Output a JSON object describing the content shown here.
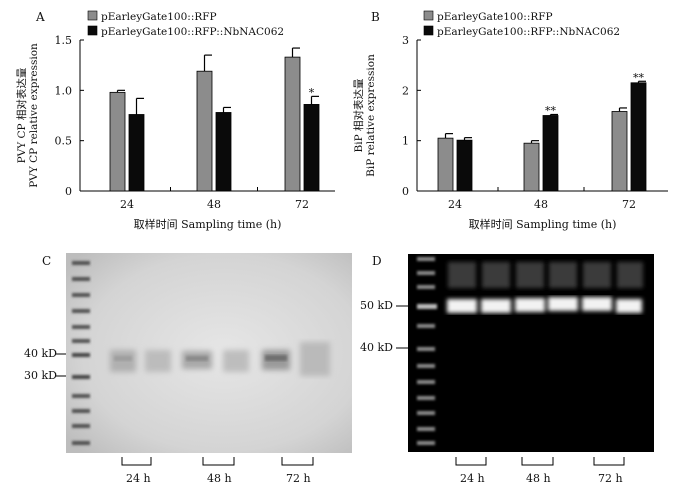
{
  "panels": {
    "a": "A",
    "b": "B",
    "c": "C",
    "d": "D"
  },
  "colors": {
    "series1": "#8c8c8c",
    "series2": "#0a0a0a",
    "gel_c_bg": "#d9d9d9",
    "gel_d_bg": "#000000"
  },
  "chart_data": [
    {
      "type": "bar",
      "categories": [
        "24",
        "48",
        "72"
      ],
      "series": [
        {
          "name": "pEarleyGate100::RFP",
          "values": [
            0.98,
            1.19,
            1.33
          ],
          "errors": [
            0.02,
            0.16,
            0.09
          ]
        },
        {
          "name": "pEarleyGate100::RFP::NbNAC062",
          "values": [
            0.76,
            0.78,
            0.86
          ],
          "errors": [
            0.16,
            0.05,
            0.08
          ]
        }
      ],
      "annotations": [
        {
          "category": "72",
          "series": 1,
          "text": "*"
        }
      ],
      "ylabel_cn": "PVY CP 相对表达量",
      "ylabel_en": "PVY CP relative expression",
      "xlabel": "取样时间 Sampling time (h)",
      "ylim": [
        0,
        1.5
      ],
      "yticks": [
        "0",
        "0.5",
        "1.0",
        "1.5"
      ],
      "legend": "top-left"
    },
    {
      "type": "bar",
      "categories": [
        "24",
        "48",
        "72"
      ],
      "series": [
        {
          "name": "pEarleyGate100::RFP",
          "values": [
            1.05,
            0.95,
            1.58
          ],
          "errors": [
            0.09,
            0.05,
            0.07
          ]
        },
        {
          "name": "pEarleyGate100::RFP::NbNAC062",
          "values": [
            1.01,
            1.5,
            2.15
          ],
          "errors": [
            0.05,
            0.02,
            0.03
          ]
        }
      ],
      "annotations": [
        {
          "category": "48",
          "series": 1,
          "text": "**"
        },
        {
          "category": "72",
          "series": 1,
          "text": "**"
        }
      ],
      "ylabel_cn": "BiP 相对表达量",
      "ylabel_en": "BiP relative expression",
      "xlabel": "取样时间 Sampling time (h)",
      "ylim": [
        0,
        3
      ],
      "yticks": [
        "0",
        "1",
        "2",
        "3"
      ],
      "legend": "top-left"
    }
  ],
  "gel_c": {
    "markers": [
      "40 kD",
      "30 kD"
    ],
    "lanes": [
      "24 h",
      "48 h",
      "72 h"
    ]
  },
  "gel_d": {
    "markers": [
      "50 kD",
      "40 kD"
    ],
    "lanes": [
      "24 h",
      "48 h",
      "72 h"
    ]
  }
}
